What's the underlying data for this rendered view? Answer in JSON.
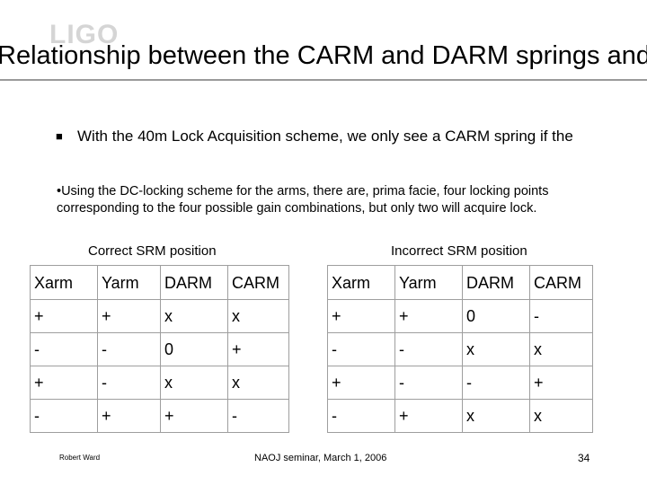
{
  "logo": {
    "text": "LIGO"
  },
  "slide": {
    "title": "Relationship between the CARM and DARM springs and",
    "bullet": "With the 40m Lock Acquisition scheme, we only see a CARM spring if the",
    "note": "•Using the DC-locking scheme for the arms, there are, prima facie, four locking points corresponding to the four possible gain combinations, but only two will acquire lock."
  },
  "tables": {
    "left": {
      "caption": "Correct SRM position",
      "headers": [
        "Xarm",
        "Yarm",
        "DARM",
        "CARM"
      ],
      "rows": [
        [
          "+",
          "+",
          "x",
          "x"
        ],
        [
          "-",
          "-",
          "0",
          "+"
        ],
        [
          "+",
          "-",
          "x",
          "x"
        ],
        [
          "-",
          "+",
          "+",
          "-"
        ]
      ]
    },
    "right": {
      "caption": "Incorrect SRM position",
      "headers": [
        "Xarm",
        "Yarm",
        "DARM",
        "CARM"
      ],
      "rows": [
        [
          "+",
          "+",
          "0",
          "-"
        ],
        [
          "-",
          "-",
          "x",
          "x"
        ],
        [
          "+",
          "-",
          "-",
          "+"
        ],
        [
          "-",
          "+",
          "x",
          "x"
        ]
      ]
    }
  },
  "footer": {
    "author": "Robert Ward",
    "event": "NAOJ seminar, March 1, 2006",
    "page": "34"
  },
  "colors": {
    "rule": "#9a9a9a",
    "table_border": "#9e9e9e",
    "logo": "#c8c8c8"
  }
}
